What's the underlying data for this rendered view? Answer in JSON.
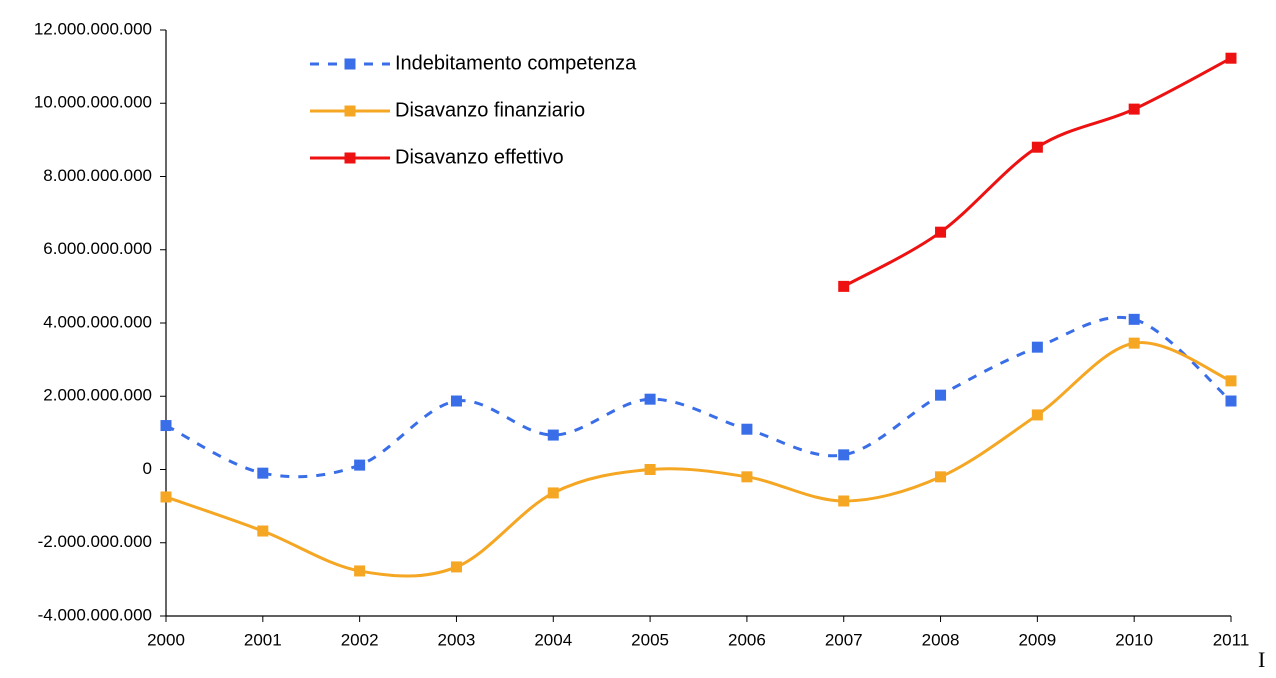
{
  "chart_data": {
    "type": "line",
    "categories": [
      "2000",
      "2001",
      "2002",
      "2003",
      "2004",
      "2005",
      "2006",
      "2007",
      "2008",
      "2009",
      "2010",
      "2011"
    ],
    "series": [
      {
        "name": "Indebitamento competenza",
        "color": "#3a6ee8",
        "dashed": true,
        "values": [
          1200000000,
          -100000000,
          120000000,
          1870000000,
          940000000,
          1920000000,
          1100000000,
          400000000,
          2030000000,
          3340000000,
          4100000000,
          1870000000
        ]
      },
      {
        "name": "Disavanzo finanziario",
        "color": "#f5a623",
        "dashed": false,
        "values": [
          -750000000,
          -1680000000,
          -2770000000,
          -2660000000,
          -640000000,
          0,
          -200000000,
          -860000000,
          -200000000,
          1490000000,
          3450000000,
          2420000000
        ]
      },
      {
        "name": "Disavanzo effettivo",
        "color": "#ee1111",
        "dashed": false,
        "values": [
          null,
          null,
          null,
          null,
          null,
          null,
          null,
          5000000000,
          6480000000,
          8800000000,
          9840000000,
          11230000000
        ]
      }
    ],
    "ylim": [
      -4000000000,
      12000000000
    ],
    "yticks": [
      {
        "value": -4000000000,
        "label": "-4.000.000.000"
      },
      {
        "value": -2000000000,
        "label": "-2.000.000.000"
      },
      {
        "value": 0,
        "label": "0"
      },
      {
        "value": 2000000000,
        "label": "2.000.000.000"
      },
      {
        "value": 4000000000,
        "label": "4.000.000.000"
      },
      {
        "value": 6000000000,
        "label": "6.000.000.000"
      },
      {
        "value": 8000000000,
        "label": "8.000.000.000"
      },
      {
        "value": 10000000000,
        "label": "10.000.000.000"
      },
      {
        "value": 12000000000,
        "label": "12.000.000.000"
      }
    ],
    "smooth": true,
    "grid": false,
    "legend": "top-left"
  },
  "page_fragment": "I"
}
